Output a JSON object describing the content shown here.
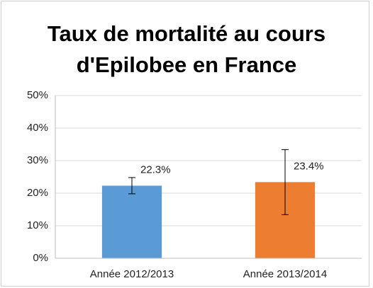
{
  "chart_data": {
    "type": "bar",
    "title": "Taux de mortalité au cours d'Epilobee en France",
    "categories": [
      "Année 2012/2013",
      "Année 2013/2014"
    ],
    "values": [
      22.3,
      23.4
    ],
    "value_labels": [
      "22.3%",
      "23.4%"
    ],
    "errors": [
      2.5,
      10
    ],
    "colors": [
      "#5b9bd5",
      "#ed7d31"
    ],
    "ylim": [
      0,
      50
    ],
    "yticks": [
      {
        "value": 0,
        "label": "0%"
      },
      {
        "value": 10,
        "label": "10%"
      },
      {
        "value": 20,
        "label": "20%"
      },
      {
        "value": 30,
        "label": "30%"
      },
      {
        "value": 40,
        "label": "40%"
      },
      {
        "value": 50,
        "label": "50%"
      }
    ],
    "grid": true
  }
}
